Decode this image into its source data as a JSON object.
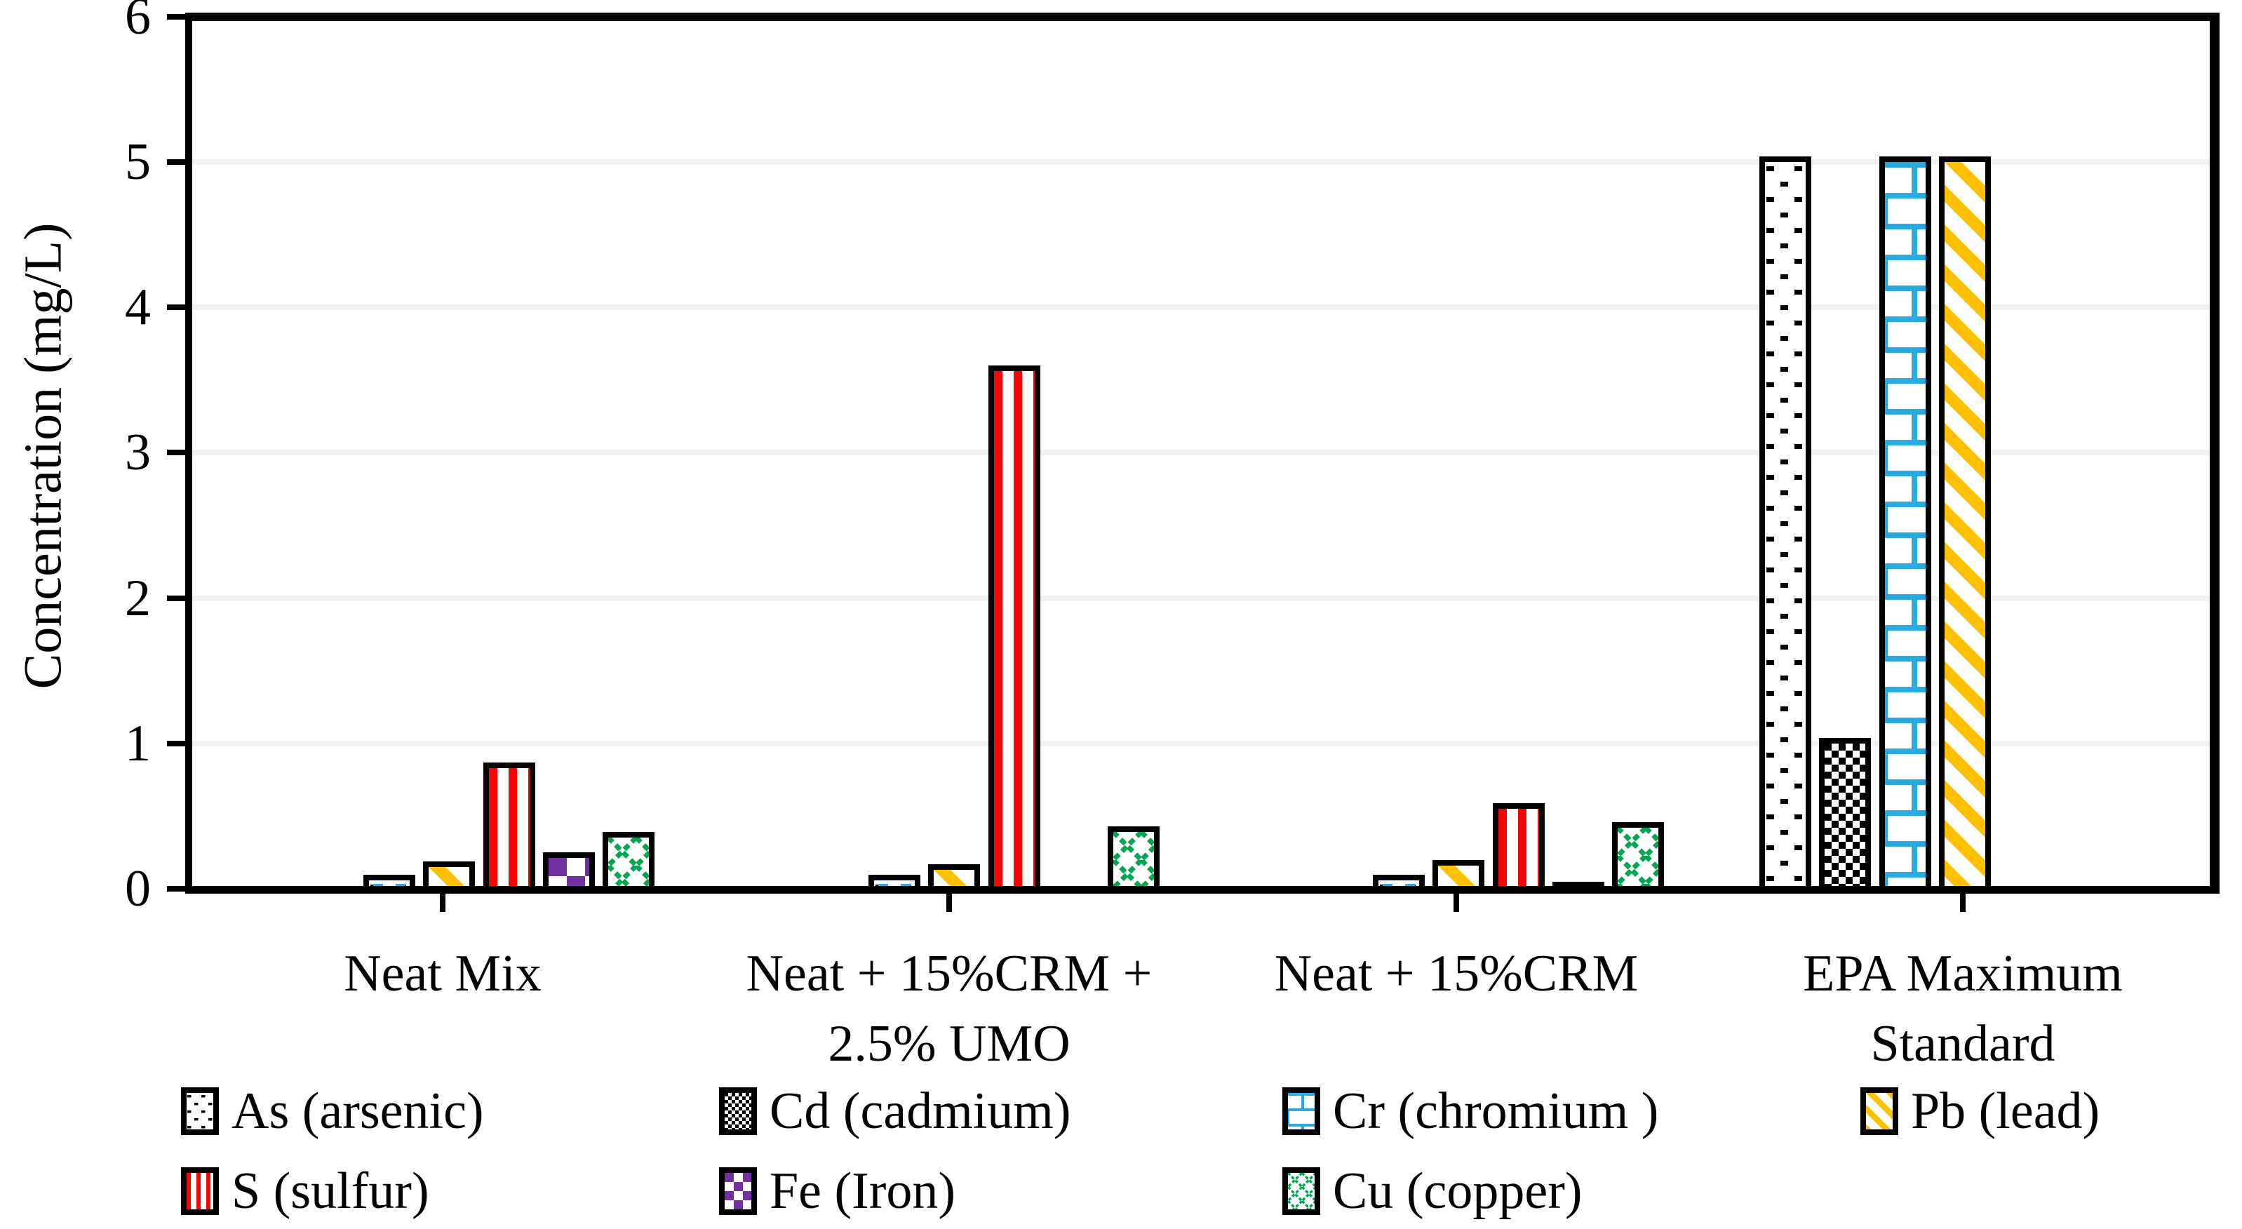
{
  "chart_data": {
    "type": "bar",
    "title": "",
    "xlabel": "",
    "ylabel": "Concentration (mg/L)",
    "ylim": [
      0,
      6
    ],
    "yticks": [
      "0",
      "1",
      "2",
      "3",
      "4",
      "5",
      "6"
    ],
    "grid": "horizontal gridlines at 1..5",
    "legend_position": "bottom, two rows",
    "categories": [
      "Neat Mix",
      "Neat + 15%CRM + 2.5% UMO",
      "Neat + 15%CRM",
      "EPA Maximum Standard"
    ],
    "category_label_lines": [
      [
        "Neat Mix"
      ],
      [
        "Neat + 15%CRM +",
        "2.5% UMO"
      ],
      [
        "Neat + 15%CRM"
      ],
      [
        "EPA Maximum",
        "Standard"
      ]
    ],
    "series": [
      {
        "key": "As",
        "name": "As (arsenic)",
        "pattern": "black dots on white",
        "color": "#000000",
        "values": [
          0.06,
          0.06,
          0.06,
          5
        ]
      },
      {
        "key": "Cd",
        "name": "Cd (cadmium)",
        "pattern": "fine black-white checker",
        "color": "#000000",
        "values": [
          0,
          0,
          0,
          1
        ]
      },
      {
        "key": "Cr",
        "name": "Cr (chromium )",
        "pattern": "sky-blue brick on white",
        "color": "#29ABE2",
        "values": [
          0.03,
          0.03,
          0.03,
          5
        ]
      },
      {
        "key": "Pb",
        "name": "Pb (lead)",
        "pattern": "gold diagonal stripes",
        "color": "#FFC000",
        "values": [
          0.15,
          0.13,
          0.16,
          5
        ]
      },
      {
        "key": "S",
        "name": "S (sulfur)",
        "pattern": "red vertical stripes",
        "color": "#FF0000",
        "values": [
          0.83,
          3.56,
          0.55,
          0
        ]
      },
      {
        "key": "Fe",
        "name": "Fe (Iron)",
        "pattern": "purple-white checkerboard",
        "color": "#7030A0",
        "values": [
          0.21,
          0,
          0.01,
          0
        ]
      },
      {
        "key": "Cu",
        "name": "Cu (copper)",
        "pattern": "green diagonal trellis",
        "color": "#00A651",
        "values": [
          0.35,
          0.39,
          0.42,
          0
        ]
      }
    ],
    "legend_rows": [
      [
        "As",
        "Cd",
        "Cr",
        "Pb"
      ],
      [
        "S",
        "Fe",
        "Cu"
      ]
    ],
    "slot_layout": [
      [
        "As",
        "Pb",
        "S",
        "Fe",
        "Cu"
      ],
      [
        "As",
        "Pb",
        "S",
        "Fe",
        "Cu"
      ],
      [
        "As",
        "Pb",
        "S",
        "Fe",
        "Cu"
      ],
      [
        "As",
        "Cd",
        "Cr",
        "Pb"
      ]
    ],
    "cr_hint_groups": [
      0,
      1,
      2
    ],
    "colors": {
      "grid": "#F1F1F1",
      "axis": "#000000",
      "background": "#FFFFFF"
    }
  }
}
